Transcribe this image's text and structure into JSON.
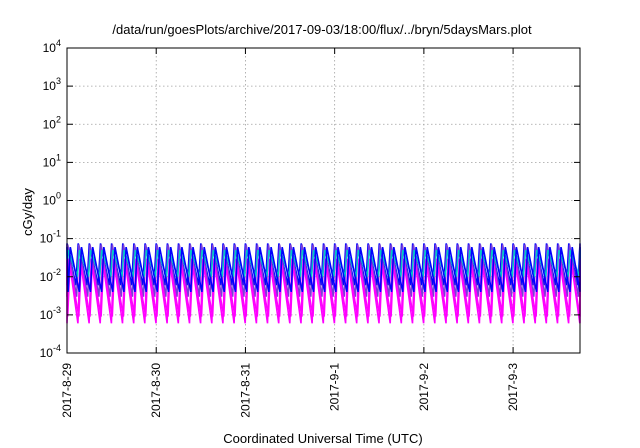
{
  "chart_data": {
    "type": "line",
    "title": "/data/run/goesPlots/archive/2017-09-03/18:00/flux/../bryn/5daysMars.plot",
    "xlabel": "Coordinated Universal Time (UTC)",
    "ylabel": "cGy/day",
    "yscale": "log",
    "ylim": [
      0.0001,
      10000
    ],
    "xlim": [
      "2017-08-29",
      "2017-09-03 18:00"
    ],
    "x_ticks": [
      "2017-8-29",
      "2017-8-30",
      "2017-8-31",
      "2017-9-1",
      "2017-9-2",
      "2017-9-3"
    ],
    "y_ticks": [
      {
        "base": "10",
        "exp": "-4"
      },
      {
        "base": "10",
        "exp": "-3"
      },
      {
        "base": "10",
        "exp": "-2"
      },
      {
        "base": "10",
        "exp": "-1"
      },
      {
        "base": "10",
        "exp": "0"
      },
      {
        "base": "10",
        "exp": "1"
      },
      {
        "base": "10",
        "exp": "2"
      },
      {
        "base": "10",
        "exp": "3"
      },
      {
        "base": "10",
        "exp": "4"
      }
    ],
    "grid": true,
    "legend": "none",
    "oscillation": {
      "cycles_per_day": 8,
      "peak_max": 0.08,
      "trough_min": 0.0005
    },
    "series": [
      {
        "color": "#0000ff",
        "peak": 0.075,
        "trough": 0.006,
        "phase": 0.0
      },
      {
        "color": "#7b3fd6",
        "peak": 0.07,
        "trough": 0.003,
        "phase": 0.06
      },
      {
        "color": "#00c8c8",
        "peak": 0.05,
        "trough": 0.01,
        "phase": 0.12
      },
      {
        "color": "#ff00ff",
        "peak": 0.03,
        "trough": 0.0006,
        "phase": 0.18
      },
      {
        "color": "#ff00ff",
        "peak": 0.02,
        "trough": 0.0009,
        "phase": 0.26
      },
      {
        "color": "#0000ff",
        "peak": 0.06,
        "trough": 0.004,
        "phase": 0.3
      }
    ]
  }
}
